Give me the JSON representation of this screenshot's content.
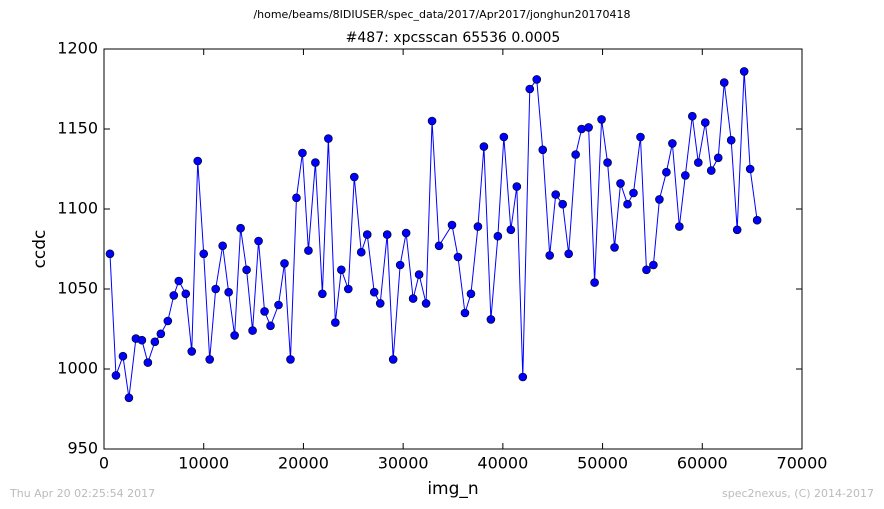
{
  "chart_data": {
    "type": "line",
    "suptitle": "/home/beams/8IDIUSER/spec_data/2017/Apr2017/jonghun20170418",
    "title": "#487: xpcsscan 65536 0.0005",
    "xlabel": "img_n",
    "ylabel": "ccdc",
    "footer_left": "Thu Apr 20 02:25:54 2017",
    "footer_right": "spec2nexus, (C) 2014-2017",
    "color": "#0000ff",
    "x": [
      600,
      1200,
      1900,
      2500,
      3200,
      3800,
      4400,
      5100,
      5700,
      6400,
      7000,
      7500,
      8200,
      8800,
      9400,
      10000,
      10600,
      11200,
      11900,
      12500,
      13100,
      13700,
      14300,
      14900,
      15500,
      16100,
      16700,
      17500,
      18100,
      18700,
      19300,
      19900,
      20500,
      21200,
      21900,
      22500,
      23200,
      23800,
      24500,
      25100,
      25800,
      26400,
      27100,
      27700,
      28400,
      29000,
      29700,
      30300,
      31000,
      31600,
      32300,
      32900,
      33600,
      34900,
      35500,
      36200,
      36800,
      37500,
      38100,
      38800,
      39500,
      40100,
      40800,
      41400,
      42000,
      42700,
      43400,
      44000,
      44700,
      45300,
      46000,
      46600,
      47300,
      47900,
      48600,
      49200,
      49900,
      50500,
      51200,
      51800,
      52500,
      53100,
      53800,
      54400,
      55100,
      55700,
      56400,
      57000,
      57700,
      58300,
      59000,
      59600,
      60300,
      60900,
      61600,
      62200,
      62900,
      63500,
      64200,
      64800,
      65500
    ],
    "values": [
      1072,
      996,
      1008,
      982,
      1019,
      1018,
      1004,
      1017,
      1022,
      1030,
      1046,
      1055,
      1047,
      1011,
      1130,
      1072,
      1006,
      1050,
      1077,
      1048,
      1021,
      1088,
      1062,
      1024,
      1080,
      1036,
      1027,
      1040,
      1066,
      1006,
      1107,
      1135,
      1074,
      1129,
      1047,
      1144,
      1029,
      1062,
      1050,
      1120,
      1073,
      1084,
      1048,
      1041,
      1084,
      1006,
      1065,
      1085,
      1044,
      1059,
      1041,
      1155,
      1077,
      1090,
      1070,
      1035,
      1047,
      1089,
      1139,
      1031,
      1083,
      1145,
      1087,
      1114,
      995,
      1175,
      1181,
      1137,
      1071,
      1109,
      1103,
      1072,
      1134,
      1150,
      1151,
      1054,
      1156,
      1129,
      1076,
      1116,
      1103,
      1110,
      1145,
      1062,
      1065,
      1106,
      1123,
      1141,
      1089,
      1121,
      1158,
      1129,
      1154,
      1124,
      1132,
      1179,
      1143,
      1087,
      1186,
      1125,
      1093
    ],
    "xlim": [
      0,
      70000
    ],
    "xticks": [
      0,
      10000,
      20000,
      30000,
      40000,
      50000,
      60000,
      70000
    ],
    "ylim": [
      950,
      1200
    ],
    "yticks": [
      950,
      1000,
      1050,
      1100,
      1150,
      1200
    ]
  }
}
